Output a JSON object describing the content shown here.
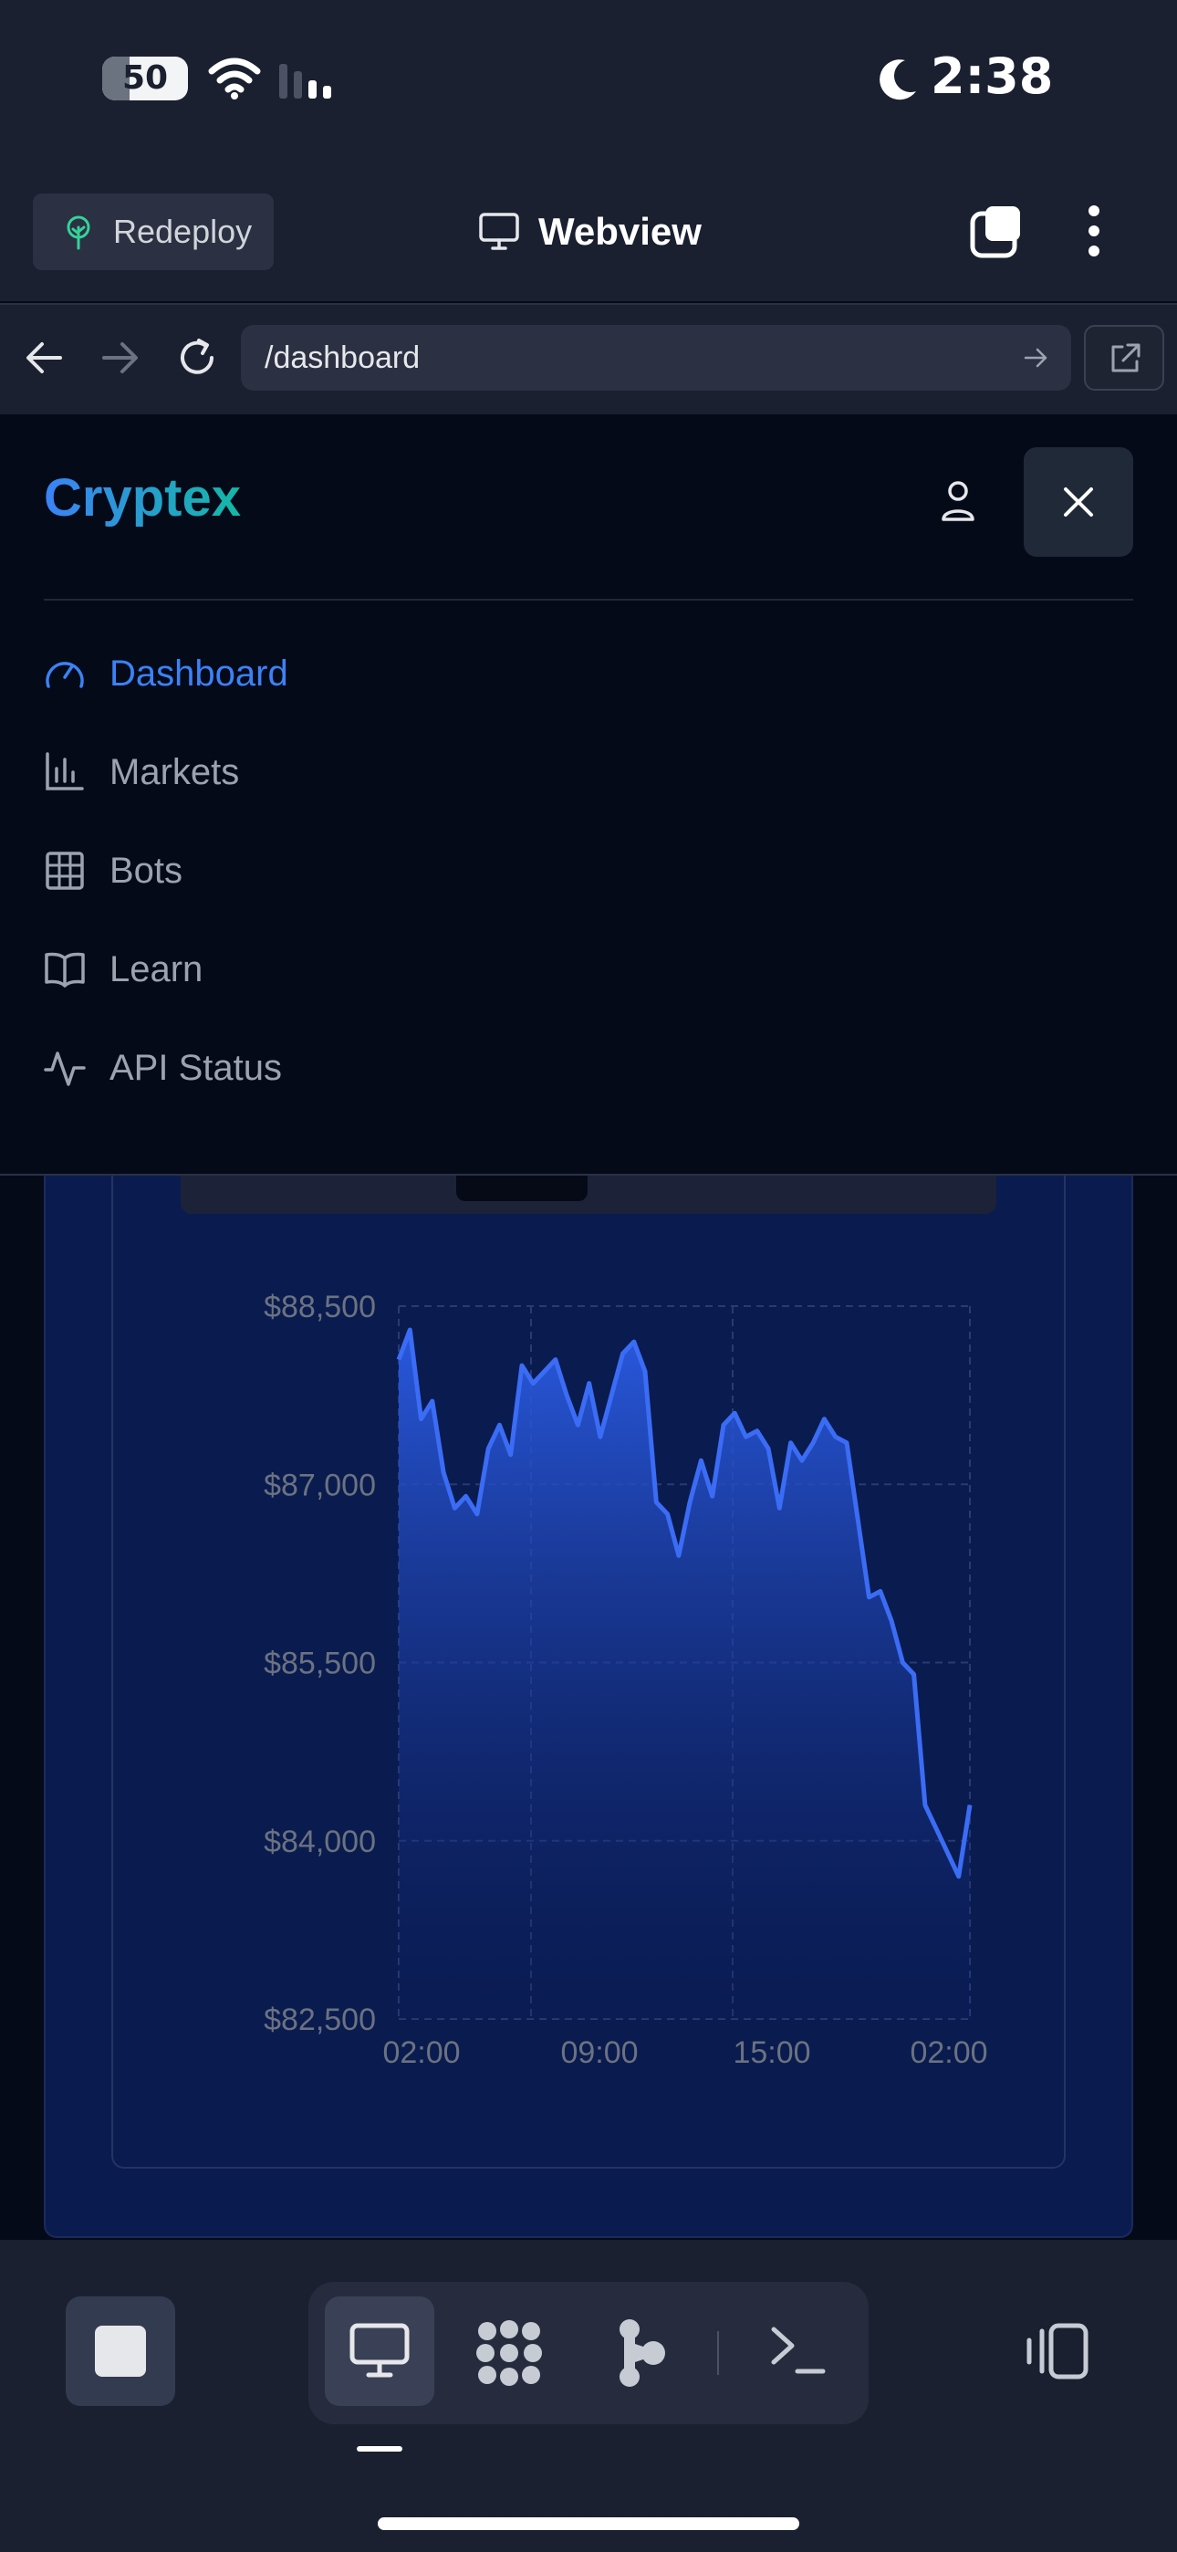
{
  "status_bar": {
    "battery": "50",
    "time": "2:38"
  },
  "top_bar": {
    "redeploy_label": "Redeploy",
    "title": "Webview"
  },
  "url_bar": {
    "path": "/dashboard"
  },
  "nav": {
    "brand": "Cryptex",
    "items": [
      {
        "label": "Dashboard",
        "icon": "gauge-icon",
        "active": true
      },
      {
        "label": "Markets",
        "icon": "bar-chart-icon",
        "active": false
      },
      {
        "label": "Bots",
        "icon": "grid-icon",
        "active": false
      },
      {
        "label": "Learn",
        "icon": "book-icon",
        "active": false
      },
      {
        "label": "API Status",
        "icon": "activity-icon",
        "active": false
      }
    ]
  },
  "colors": {
    "accent": "#3b82f6",
    "brand_end": "#14b8a6",
    "line": "#3b6cf5"
  },
  "chart_data": {
    "type": "area",
    "x_tick_labels": [
      "02:00",
      "09:00",
      "15:00",
      "02:00"
    ],
    "y_tick_labels": [
      "$88,500",
      "$87,000",
      "$85,500",
      "$84,000",
      "$82,500"
    ],
    "ylim": [
      82500,
      88500
    ],
    "grid": true,
    "values": [
      88050,
      88300,
      87550,
      87700,
      87100,
      86800,
      86900,
      86750,
      87300,
      87500,
      87250,
      88000,
      87850,
      87950,
      88050,
      87750,
      87500,
      87850,
      87400,
      87750,
      88100,
      88200,
      87950,
      86850,
      86750,
      86400,
      86850,
      87200,
      86900,
      87500,
      87600,
      87400,
      87450,
      87300,
      86800,
      87350,
      87200,
      87350,
      87550,
      87400,
      87350,
      86700,
      86050,
      86100,
      85850,
      85500,
      85400,
      84300,
      84100,
      83900,
      83700,
      84300
    ]
  }
}
